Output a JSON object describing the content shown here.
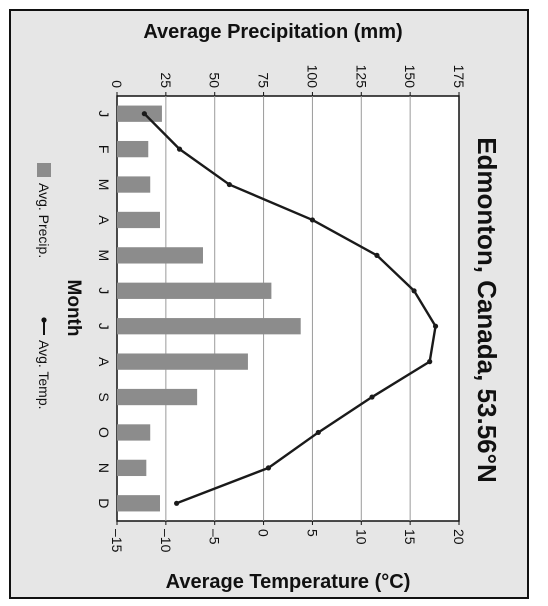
{
  "chart_data": {
    "type": "bar+line",
    "title": "Edmonton, Canada, 53.56°N",
    "categories": [
      "J",
      "F",
      "M",
      "A",
      "M",
      "J",
      "J",
      "A",
      "S",
      "O",
      "N",
      "D"
    ],
    "category_axis_label": "Month",
    "precip_axis_label": "Average Precipitation (mm)",
    "temp_axis_label": "Average Temperature (°C)",
    "precip_range": [
      0,
      175
    ],
    "precip_ticks": [
      0,
      25,
      50,
      75,
      100,
      125,
      150,
      175
    ],
    "temp_range": [
      -15,
      20
    ],
    "temp_ticks": [
      -15,
      -10,
      -5,
      0,
      5,
      10,
      15,
      20
    ],
    "temp_tick_labels": [
      "–15",
      "–10",
      "–5",
      "0",
      "5",
      "10",
      "15",
      "20"
    ],
    "series": [
      {
        "name": "Avg. Precip.",
        "type": "bar",
        "values": [
          23,
          16,
          17,
          22,
          44,
          79,
          94,
          67,
          41,
          17,
          15,
          22
        ]
      },
      {
        "name": "Avg. Temp.",
        "type": "line",
        "values": [
          -12.2,
          -8.6,
          -3.5,
          5.0,
          11.6,
          15.4,
          17.6,
          17.0,
          11.1,
          5.6,
          0.5,
          -8.9
        ]
      }
    ],
    "grid": true,
    "legend_position": "left",
    "colors": {
      "bars": "#8c8c8c",
      "line": "#1a1a1a",
      "plot_bg": "#ffffff",
      "frame_bg": "#e6e6e6"
    }
  }
}
